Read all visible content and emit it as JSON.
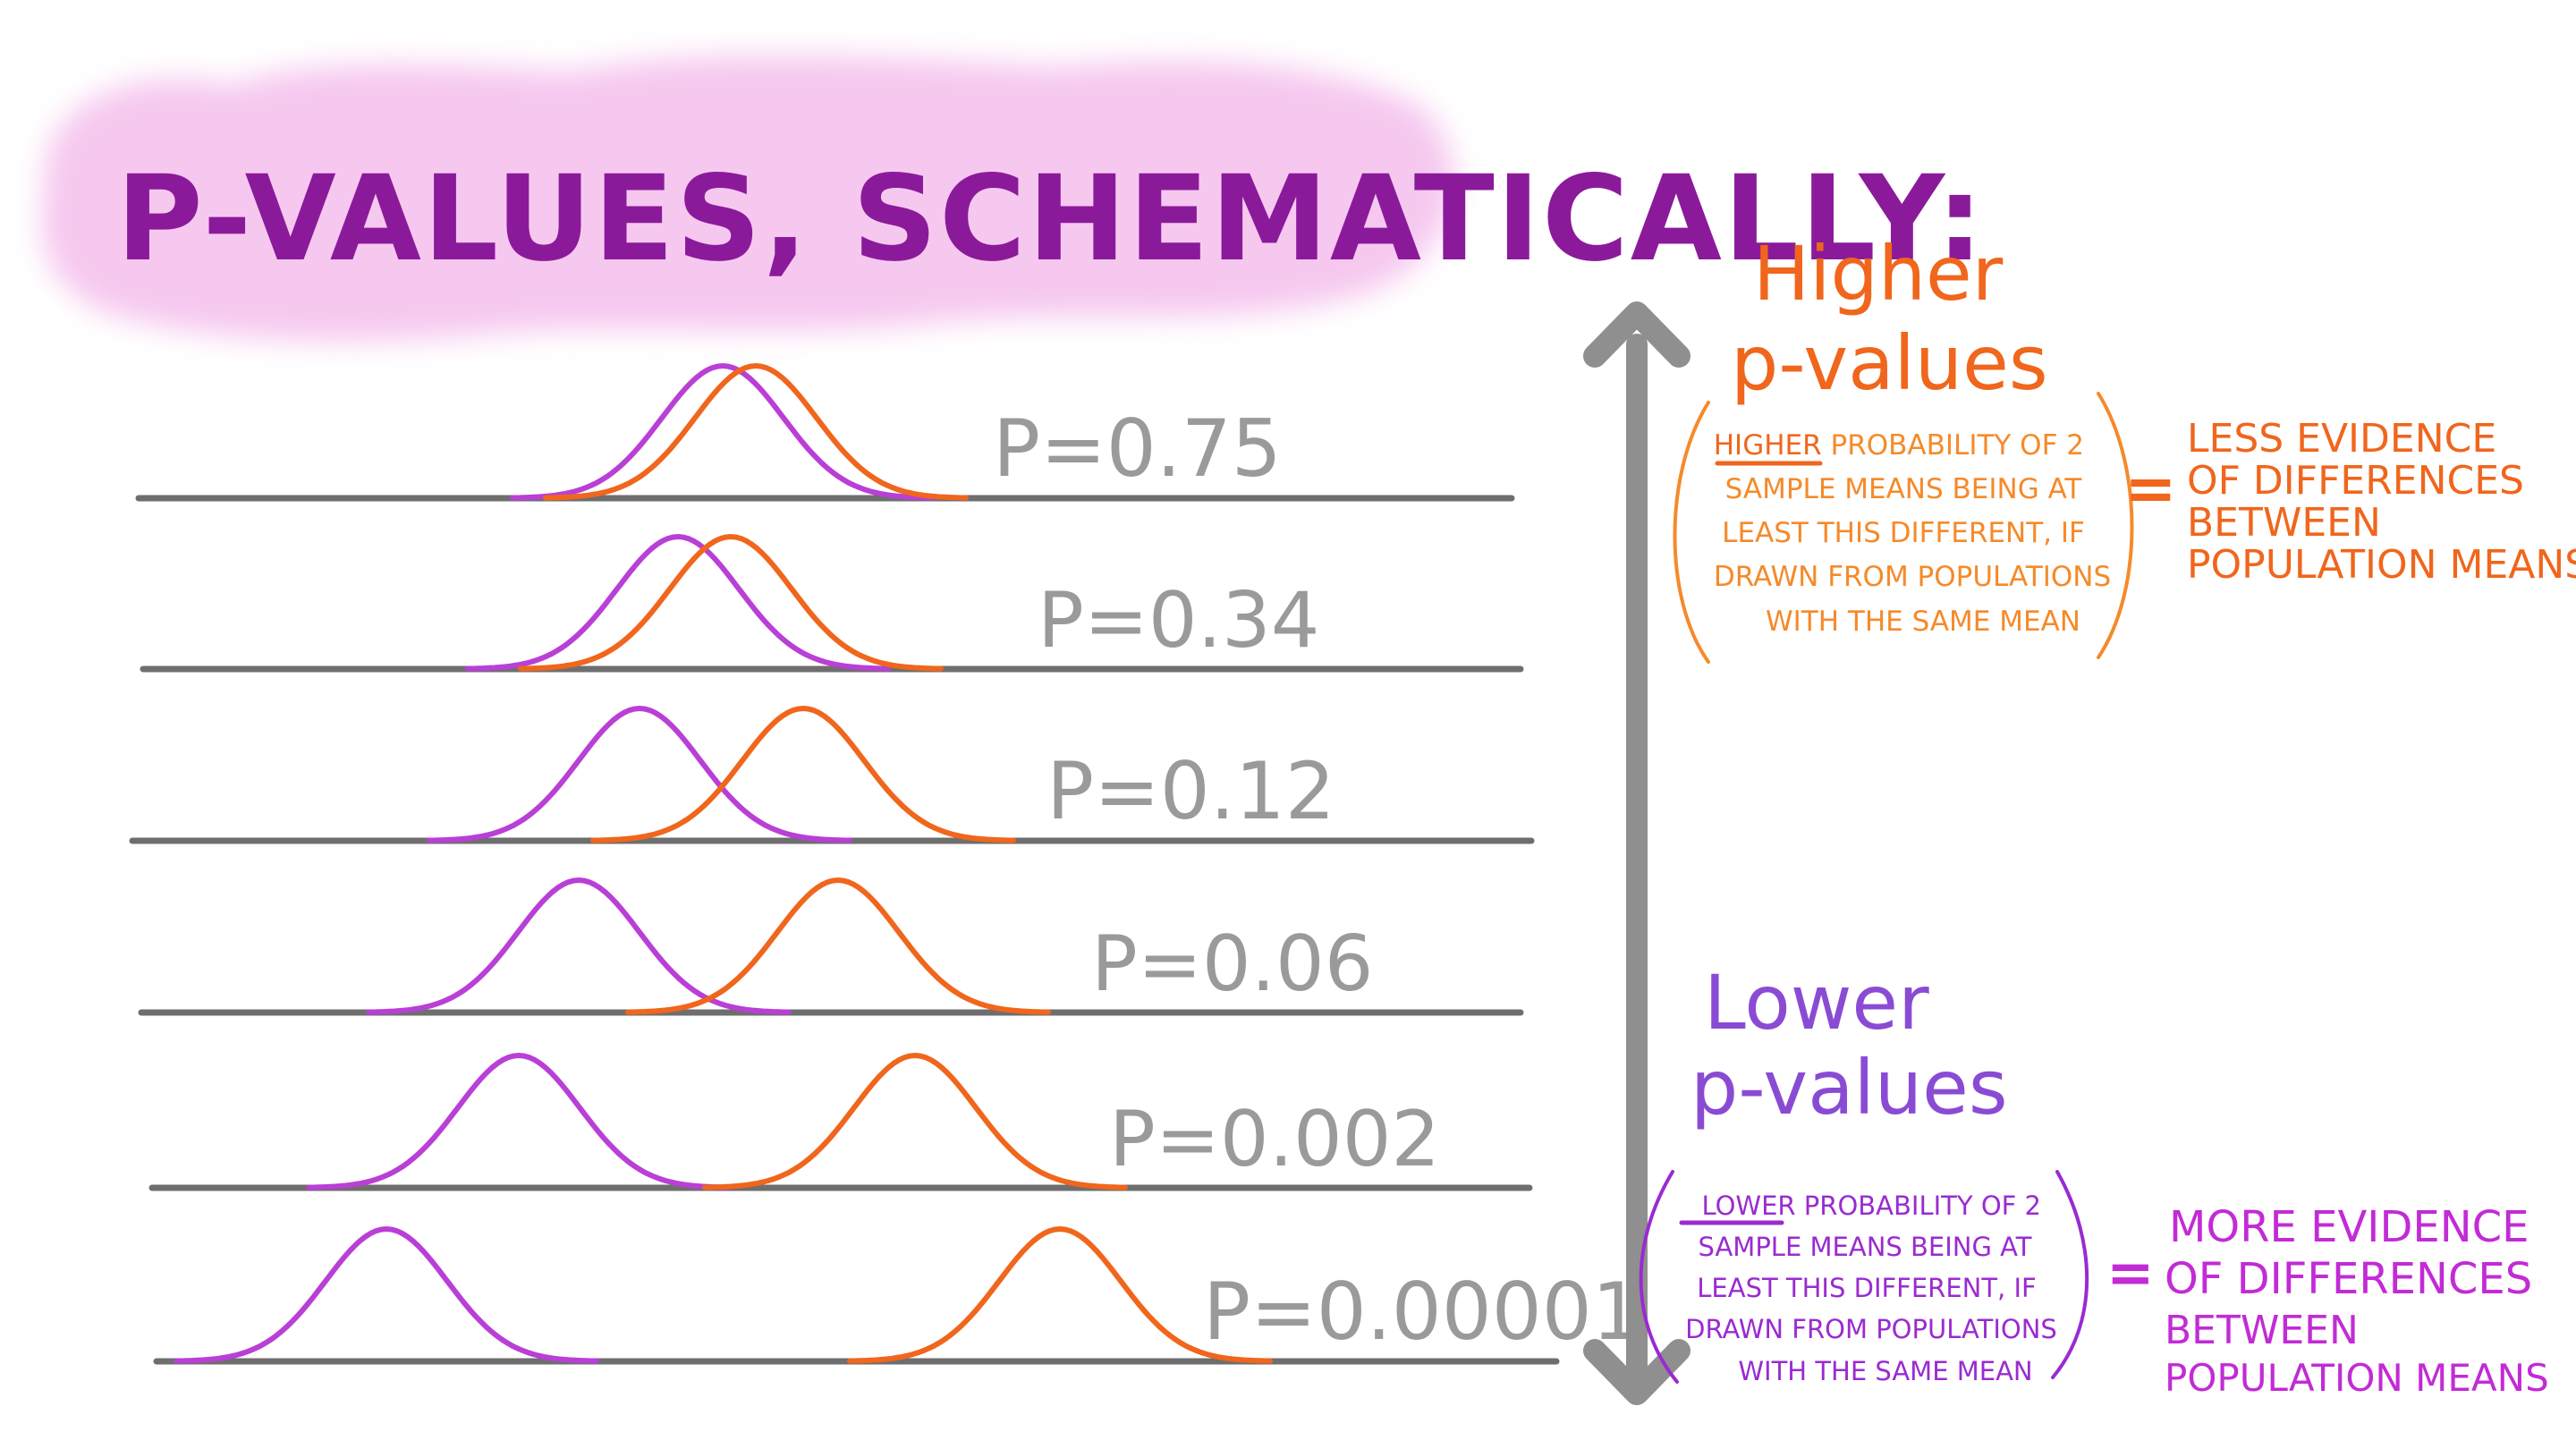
{
  "title": "P-VALUES, SCHEMATICALLY:",
  "colors": {
    "title": "#8b1a9b",
    "title_blob": "#f6c8ef",
    "group_a_curve": "#b93fd6",
    "group_b_curve": "#f0661c",
    "baseline": "#6e6e6e",
    "p_label": "#9a9a9a",
    "arrow": "#8f8f8f",
    "higher_text": "#f0661c",
    "higher_box": "#f58a2a",
    "lower_text": "#8a4bd4",
    "lower_box": "#9a2bd0",
    "lower_result": "#c22bd6"
  },
  "rows": [
    {
      "label": "P=0.75",
      "separation": 0.75
    },
    {
      "label": "P=0.34",
      "separation": 0.34
    },
    {
      "label": "P=0.12",
      "separation": 0.12
    },
    {
      "label": "P=0.06",
      "separation": 0.06
    },
    {
      "label": "P=0.002",
      "separation": 0.002
    },
    {
      "label": "P=0.00001",
      "separation": 1e-05
    }
  ],
  "higher": {
    "heading_line1": "Higher",
    "heading_line2": "p-values",
    "box_emph": "HIGHER",
    "box_line1_rest": " PROBABILITY OF 2",
    "box_line2": "SAMPLE MEANS BEING AT",
    "box_line3": "LEAST THIS DIFFERENT, IF",
    "box_line4": "DRAWN FROM POPULATIONS",
    "box_line5": "WITH THE SAME MEAN",
    "equals": "=",
    "result_line1": "LESS EVIDENCE",
    "result_line2": "OF DIFFERENCES",
    "result_line3": "BETWEEN",
    "result_line4": "POPULATION MEANS"
  },
  "lower": {
    "heading_line1": "Lower",
    "heading_line2": "p-values",
    "box_emph": "LOWER",
    "box_line1_rest": " PROBABILITY OF 2",
    "box_line2": "SAMPLE MEANS BEING AT",
    "box_line3": "LEAST THIS DIFFERENT, IF",
    "box_line4": "DRAWN FROM POPULATIONS",
    "box_line5": "WITH THE SAME MEAN",
    "equals": "=",
    "result_line1": "MORE EVIDENCE",
    "result_line2": "OF DIFFERENCES",
    "result_line3": "BETWEEN",
    "result_line4": "POPULATION MEANS"
  }
}
